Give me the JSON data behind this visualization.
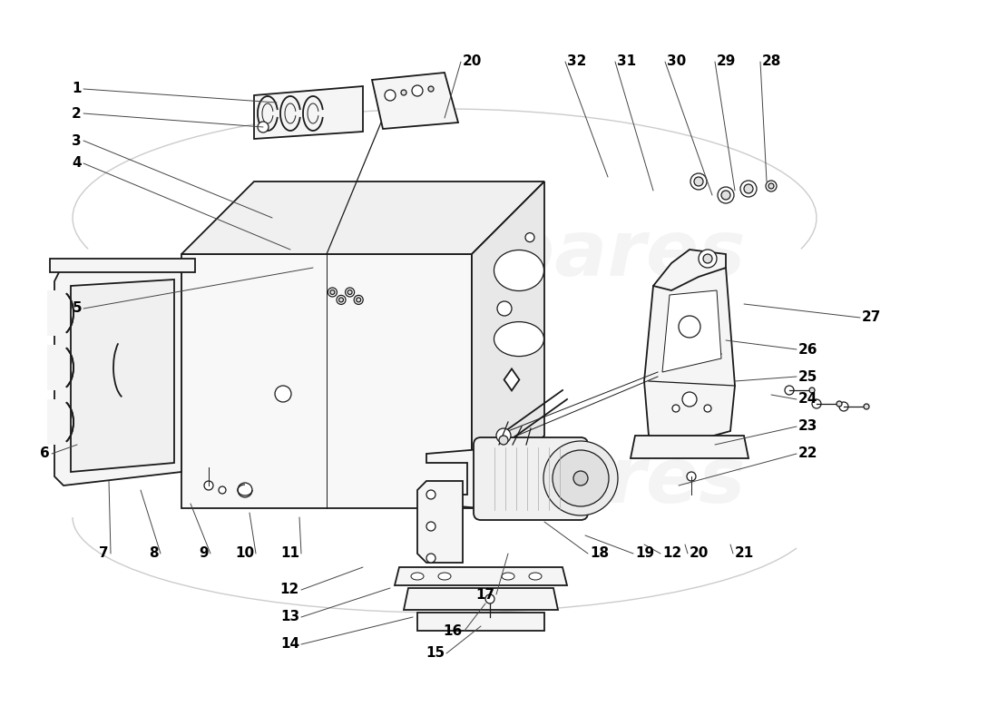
{
  "bg_color": "#ffffff",
  "line_color": "#1a1a1a",
  "label_color": "#000000",
  "label_fontsize": 11,
  "watermark_text": "eurospares",
  "watermark_color": "#cccccc",
  "watermark_alpha": 0.22,
  "figsize": [
    11.0,
    8.0
  ],
  "dpi": 100
}
